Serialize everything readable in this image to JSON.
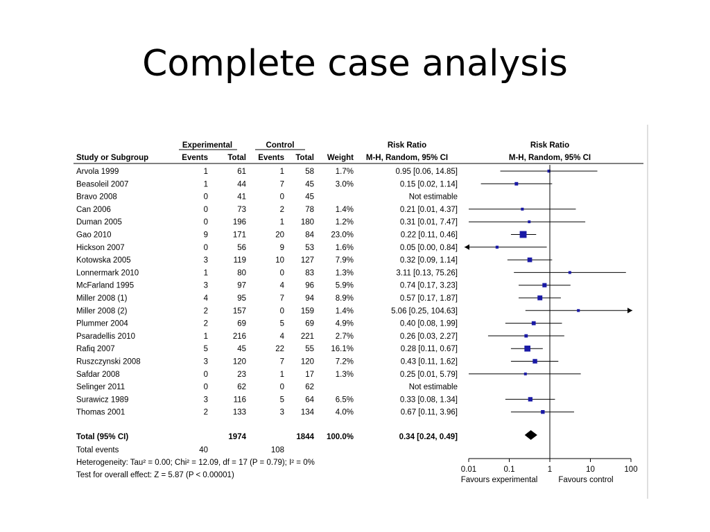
{
  "slide": {
    "title": "Complete case analysis"
  },
  "chart_data": {
    "type": "forest",
    "header": {
      "group_experimental": "Experimental",
      "group_control": "Control",
      "group_rr_text": "Risk Ratio",
      "group_rr_plot": "Risk Ratio",
      "col_study": "Study or Subgroup",
      "col_exp_events": "Events",
      "col_exp_total": "Total",
      "col_ctl_events": "Events",
      "col_ctl_total": "Total",
      "col_weight": "Weight",
      "col_rr_text": "M-H, Random, 95% CI",
      "col_rr_plot": "M-H, Random, 95% CI"
    },
    "studies": [
      {
        "name": "Arvola 1999",
        "e_events": "1",
        "e_total": "61",
        "c_events": "1",
        "c_total": "58",
        "weight": "1.7%",
        "ci_text": "0.95 [0.06, 14.85]",
        "rr": 0.95,
        "lo": 0.06,
        "hi": 14.85,
        "w": 1.7
      },
      {
        "name": "Beasoleil 2007",
        "e_events": "1",
        "e_total": "44",
        "c_events": "7",
        "c_total": "45",
        "weight": "3.0%",
        "ci_text": "0.15 [0.02, 1.14]",
        "rr": 0.15,
        "lo": 0.02,
        "hi": 1.14,
        "w": 3.0
      },
      {
        "name": "Bravo 2008",
        "e_events": "0",
        "e_total": "41",
        "c_events": "0",
        "c_total": "45",
        "weight": "",
        "ci_text": "Not estimable",
        "rr": null,
        "lo": null,
        "hi": null,
        "w": 0
      },
      {
        "name": "Can 2006",
        "e_events": "0",
        "e_total": "73",
        "c_events": "2",
        "c_total": "78",
        "weight": "1.4%",
        "ci_text": "0.21 [0.01, 4.37]",
        "rr": 0.21,
        "lo": 0.01,
        "hi": 4.37,
        "w": 1.4
      },
      {
        "name": "Duman 2005",
        "e_events": "0",
        "e_total": "196",
        "c_events": "1",
        "c_total": "180",
        "weight": "1.2%",
        "ci_text": "0.31 [0.01, 7.47]",
        "rr": 0.31,
        "lo": 0.01,
        "hi": 7.47,
        "w": 1.2
      },
      {
        "name": "Gao 2010",
        "e_events": "9",
        "e_total": "171",
        "c_events": "20",
        "c_total": "84",
        "weight": "23.0%",
        "ci_text": "0.22 [0.11, 0.46]",
        "rr": 0.22,
        "lo": 0.11,
        "hi": 0.46,
        "w": 23.0
      },
      {
        "name": "Hickson 2007",
        "e_events": "0",
        "e_total": "56",
        "c_events": "9",
        "c_total": "53",
        "weight": "1.6%",
        "ci_text": "0.05 [0.00, 0.84]",
        "rr": 0.05,
        "lo": 0.0,
        "hi": 0.84,
        "w": 1.6
      },
      {
        "name": "Kotowska 2005",
        "e_events": "3",
        "e_total": "119",
        "c_events": "10",
        "c_total": "127",
        "weight": "7.9%",
        "ci_text": "0.32 [0.09, 1.14]",
        "rr": 0.32,
        "lo": 0.09,
        "hi": 1.14,
        "w": 7.9
      },
      {
        "name": "Lonnermark 2010",
        "e_events": "1",
        "e_total": "80",
        "c_events": "0",
        "c_total": "83",
        "weight": "1.3%",
        "ci_text": "3.11 [0.13, 75.26]",
        "rr": 3.11,
        "lo": 0.13,
        "hi": 75.26,
        "w": 1.3
      },
      {
        "name": "McFarland 1995",
        "e_events": "3",
        "e_total": "97",
        "c_events": "4",
        "c_total": "96",
        "weight": "5.9%",
        "ci_text": "0.74 [0.17, 3.23]",
        "rr": 0.74,
        "lo": 0.17,
        "hi": 3.23,
        "w": 5.9
      },
      {
        "name": "Miller 2008 (1)",
        "e_events": "4",
        "e_total": "95",
        "c_events": "7",
        "c_total": "94",
        "weight": "8.9%",
        "ci_text": "0.57 [0.17, 1.87]",
        "rr": 0.57,
        "lo": 0.17,
        "hi": 1.87,
        "w": 8.9
      },
      {
        "name": "Miller 2008 (2)",
        "e_events": "2",
        "e_total": "157",
        "c_events": "0",
        "c_total": "159",
        "weight": "1.4%",
        "ci_text": "5.06 [0.25, 104.63]",
        "rr": 5.06,
        "lo": 0.25,
        "hi": 104.63,
        "w": 1.4
      },
      {
        "name": "Plummer 2004",
        "e_events": "2",
        "e_total": "69",
        "c_events": "5",
        "c_total": "69",
        "weight": "4.9%",
        "ci_text": "0.40 [0.08, 1.99]",
        "rr": 0.4,
        "lo": 0.08,
        "hi": 1.99,
        "w": 4.9
      },
      {
        "name": "Psaradellis 2010",
        "e_events": "1",
        "e_total": "216",
        "c_events": "4",
        "c_total": "221",
        "weight": "2.7%",
        "ci_text": "0.26 [0.03, 2.27]",
        "rr": 0.26,
        "lo": 0.03,
        "hi": 2.27,
        "w": 2.7
      },
      {
        "name": "Rafiq 2007",
        "e_events": "5",
        "e_total": "45",
        "c_events": "22",
        "c_total": "55",
        "weight": "16.1%",
        "ci_text": "0.28 [0.11, 0.67]",
        "rr": 0.28,
        "lo": 0.11,
        "hi": 0.67,
        "w": 16.1
      },
      {
        "name": "Ruszczynski 2008",
        "e_events": "3",
        "e_total": "120",
        "c_events": "7",
        "c_total": "120",
        "weight": "7.2%",
        "ci_text": "0.43 [0.11, 1.62]",
        "rr": 0.43,
        "lo": 0.11,
        "hi": 1.62,
        "w": 7.2
      },
      {
        "name": "Safdar 2008",
        "e_events": "0",
        "e_total": "23",
        "c_events": "1",
        "c_total": "17",
        "weight": "1.3%",
        "ci_text": "0.25 [0.01, 5.79]",
        "rr": 0.25,
        "lo": 0.01,
        "hi": 5.79,
        "w": 1.3
      },
      {
        "name": "Selinger 2011",
        "e_events": "0",
        "e_total": "62",
        "c_events": "0",
        "c_total": "62",
        "weight": "",
        "ci_text": "Not estimable",
        "rr": null,
        "lo": null,
        "hi": null,
        "w": 0
      },
      {
        "name": "Surawicz 1989",
        "e_events": "3",
        "e_total": "116",
        "c_events": "5",
        "c_total": "64",
        "weight": "6.5%",
        "ci_text": "0.33 [0.08, 1.34]",
        "rr": 0.33,
        "lo": 0.08,
        "hi": 1.34,
        "w": 6.5
      },
      {
        "name": "Thomas 2001",
        "e_events": "2",
        "e_total": "133",
        "c_events": "3",
        "c_total": "134",
        "weight": "4.0%",
        "ci_text": "0.67 [0.11, 3.96]",
        "rr": 0.67,
        "lo": 0.11,
        "hi": 3.96,
        "w": 4.0
      }
    ],
    "total": {
      "name": "Total (95% CI)",
      "e_total": "1974",
      "c_total": "1844",
      "weight": "100.0%",
      "ci_text": "0.34 [0.24, 0.49]",
      "rr": 0.34,
      "lo": 0.24,
      "hi": 0.49
    },
    "total_events": {
      "label": "Total events",
      "e_events": "40",
      "c_events": "108"
    },
    "heterogeneity": "Heterogeneity: Tau² = 0.00; Chi² = 12.09, df = 17 (P = 0.79); I² = 0%",
    "overall_effect": "Test for overall effect: Z = 5.87 (P < 0.00001)",
    "x_axis": {
      "scale": "log",
      "range": [
        0.01,
        100
      ],
      "ticks": [
        0.01,
        0.1,
        1,
        10,
        100
      ],
      "tick_labels": [
        "0.01",
        "0.1",
        "1",
        "10",
        "100"
      ],
      "label_left": "Favours experimental",
      "label_right": "Favours control"
    },
    "colors": {
      "marker": "#1a1aa6",
      "line": "#000000",
      "summary": "#000000"
    }
  }
}
